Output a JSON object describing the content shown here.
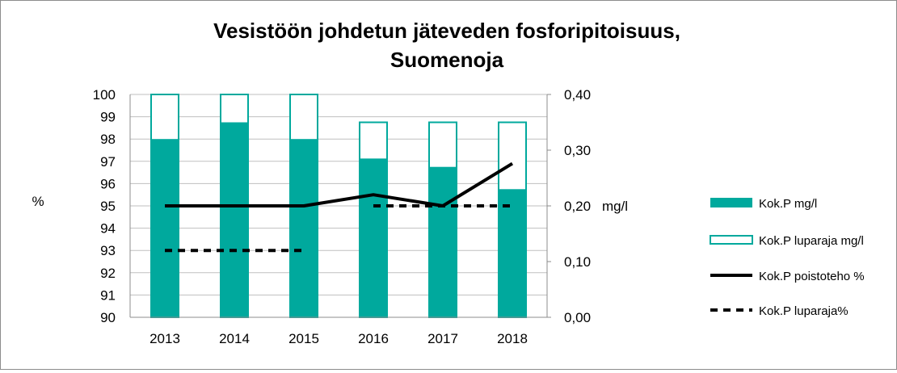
{
  "chart_data": {
    "type": "bar",
    "title_lines": [
      "Vesistöön johdetun jäteveden fosforipitoisuus,",
      "Suomenoja"
    ],
    "categories": [
      "2013",
      "2014",
      "2015",
      "2016",
      "2017",
      "2018"
    ],
    "left_axis": {
      "label": "%",
      "min": 90,
      "max": 100,
      "ticks": [
        "90",
        "91",
        "92",
        "93",
        "94",
        "95",
        "96",
        "97",
        "98",
        "99",
        "100"
      ]
    },
    "right_axis": {
      "label": "mg/l",
      "min": 0,
      "max": 0.4,
      "ticks": [
        "0,00",
        "0,10",
        "0,20",
        "0,30",
        "0,40"
      ]
    },
    "series": [
      {
        "name": "Kok.P mg/l",
        "kind": "bar-filled",
        "axis": "right",
        "color": "#00a99d",
        "values": [
          0.32,
          0.35,
          0.32,
          0.285,
          0.27,
          0.23
        ]
      },
      {
        "name": "Kok.P luparaja mg/l",
        "kind": "bar-outline",
        "axis": "right",
        "color": "#00a99d",
        "values": [
          0.4,
          0.4,
          0.4,
          0.35,
          0.35,
          0.35
        ]
      },
      {
        "name": "Kok.P poistoteho %",
        "kind": "line-solid",
        "axis": "left",
        "color": "#000000",
        "values": [
          95,
          95,
          95,
          95.5,
          95,
          96.9
        ]
      },
      {
        "name": "Kok.P luparaja%",
        "kind": "line-dashed",
        "axis": "left",
        "color": "#000000",
        "values": [
          93,
          93,
          93,
          95,
          95,
          95
        ],
        "segments": [
          [
            0,
            2
          ],
          [
            3,
            5
          ]
        ]
      }
    ],
    "legend_position": "right",
    "grid": true
  }
}
